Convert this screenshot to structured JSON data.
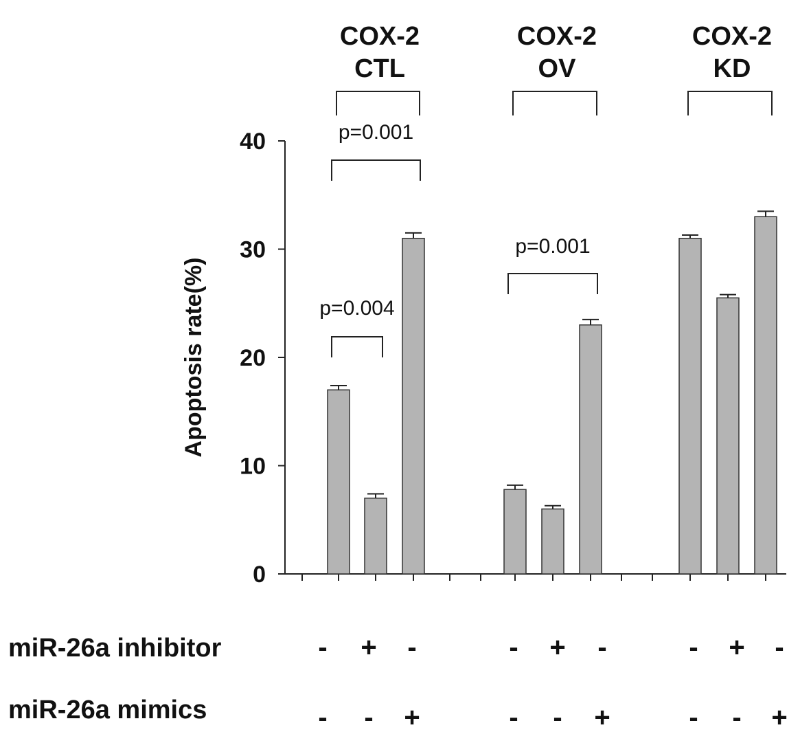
{
  "chart_data": {
    "type": "bar",
    "title": "",
    "xlabel": "",
    "ylabel": "Apoptosis rate(%)",
    "ylim": [
      0,
      40
    ],
    "yticks": [
      "0",
      "10",
      "20",
      "30",
      "40"
    ],
    "grid": false,
    "groups": [
      {
        "title_line1": "COX-2",
        "title_line2": "CTL"
      },
      {
        "title_line1": "COX-2",
        "title_line2": "OV"
      },
      {
        "title_line1": "COX-2",
        "title_line2": "KD"
      }
    ],
    "bars": [
      {
        "group": 0,
        "inhibitor": "-",
        "mimics": "-",
        "value": 17.0,
        "error": 0.4
      },
      {
        "group": 0,
        "inhibitor": "+",
        "mimics": "-",
        "value": 7.0,
        "error": 0.4
      },
      {
        "group": 0,
        "inhibitor": "-",
        "mimics": "+",
        "value": 31.0,
        "error": 0.5
      },
      {
        "group": 1,
        "inhibitor": "-",
        "mimics": "-",
        "value": 7.8,
        "error": 0.4
      },
      {
        "group": 1,
        "inhibitor": "+",
        "mimics": "-",
        "value": 6.0,
        "error": 0.3
      },
      {
        "group": 1,
        "inhibitor": "-",
        "mimics": "+",
        "value": 23.0,
        "error": 0.5
      },
      {
        "group": 2,
        "inhibitor": "-",
        "mimics": "-",
        "value": 31.0,
        "error": 0.3
      },
      {
        "group": 2,
        "inhibitor": "+",
        "mimics": "-",
        "value": 25.5,
        "error": 0.3
      },
      {
        "group": 2,
        "inhibitor": "-",
        "mimics": "+",
        "value": 33.0,
        "error": 0.5
      }
    ],
    "annotations": [
      {
        "text": "p=0.004",
        "from_bar": 0,
        "to_bar": 1
      },
      {
        "text": "p=0.001",
        "from_bar": 0,
        "to_bar": 2
      },
      {
        "text": "p=0.001",
        "from_bar": 3,
        "to_bar": 5
      }
    ],
    "row_labels": {
      "inhibitor": "miR-26a inhibitor",
      "mimics": "miR-26a  mimics"
    }
  }
}
